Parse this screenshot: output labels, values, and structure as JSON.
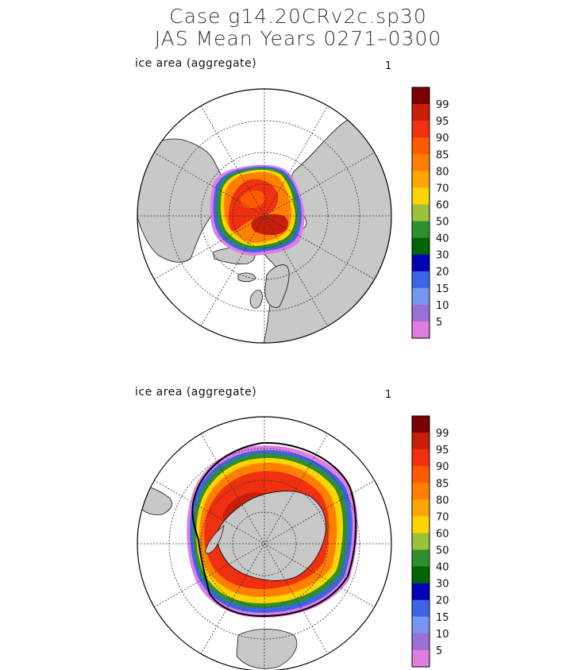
{
  "title": {
    "line1": "Case g14.20CRv2c.sp30",
    "line2": "JAS Mean   Years 0271–0300"
  },
  "chart_data": [
    {
      "type": "heatmap",
      "projection": "polar-stereographic",
      "hemisphere": "north",
      "label": "ice area  (aggregate)",
      "panel_number": "1",
      "colorbar": {
        "levels": [
          "99",
          "95",
          "90",
          "85",
          "80",
          "70",
          "60",
          "50",
          "40",
          "30",
          "20",
          "15",
          "10",
          "5"
        ],
        "colors": [
          "#7a0000",
          "#c81e0a",
          "#f03010",
          "#ff5a00",
          "#ff8000",
          "#ffa500",
          "#ffd400",
          "#9cc23a",
          "#2f8f2f",
          "#006400",
          "#0000b4",
          "#3c64e6",
          "#7896f0",
          "#9b6fd6",
          "#e07ee0"
        ]
      }
    },
    {
      "type": "heatmap",
      "projection": "polar-stereographic",
      "hemisphere": "south",
      "label": "ice area  (aggregate)",
      "panel_number": "1",
      "colorbar": {
        "levels": [
          "99",
          "95",
          "90",
          "85",
          "80",
          "70",
          "60",
          "50",
          "40",
          "30",
          "20",
          "15",
          "10",
          "5"
        ],
        "colors": [
          "#7a0000",
          "#c81e0a",
          "#f03010",
          "#ff5a00",
          "#ff8000",
          "#ffa500",
          "#ffd400",
          "#9cc23a",
          "#2f8f2f",
          "#006400",
          "#0000b4",
          "#3c64e6",
          "#7896f0",
          "#9b6fd6",
          "#e07ee0"
        ]
      }
    }
  ]
}
